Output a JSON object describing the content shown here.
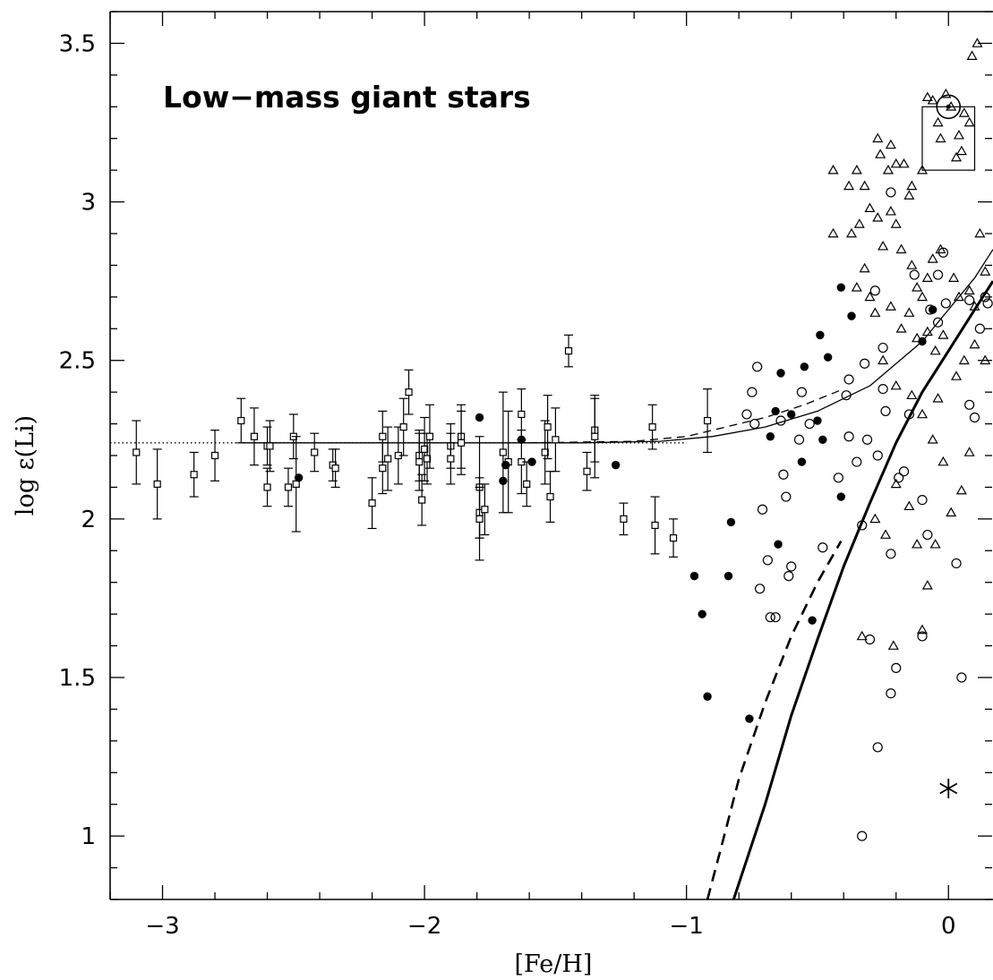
{
  "chart_data": {
    "type": "scatter",
    "title": "Low−mass giant stars",
    "xlabel": "[Fe/H]",
    "ylabel": "log ε(Li)",
    "xlim": [
      -3.2,
      0.17
    ],
    "ylim": [
      0.8,
      3.6
    ],
    "xticks": [
      -3,
      -2,
      -1,
      0
    ],
    "xtick_labels": [
      "−3",
      "−2",
      "−1",
      "0"
    ],
    "yticks": [
      1,
      1.5,
      2,
      2.5,
      3,
      3.5
    ],
    "ytick_labels": [
      "1",
      "1.5",
      "2",
      "2.5",
      "3",
      "3.5"
    ],
    "grid": false,
    "series": [
      {
        "marker": "open-square-with-errorbar",
        "points": [
          [
            -3.1,
            2.21,
            0.1
          ],
          [
            -3.02,
            2.11,
            0.11
          ],
          [
            -2.88,
            2.14,
            0.07
          ],
          [
            -2.8,
            2.2,
            0.08
          ],
          [
            -2.7,
            2.31,
            0.07
          ],
          [
            -2.65,
            2.26,
            0.09
          ],
          [
            -2.6,
            2.23,
            0.06
          ],
          [
            -2.59,
            2.23,
            0.08
          ],
          [
            -2.6,
            2.1,
            0.06
          ],
          [
            -2.52,
            2.1,
            0.06
          ],
          [
            -2.5,
            2.26,
            0.07
          ],
          [
            -2.49,
            2.11,
            0.15
          ],
          [
            -2.42,
            2.21,
            0.06
          ],
          [
            -2.35,
            2.17,
            0.05
          ],
          [
            -2.34,
            2.16,
            0.06
          ],
          [
            -2.2,
            2.05,
            0.08
          ],
          [
            -2.16,
            2.26,
            0.08
          ],
          [
            -2.16,
            2.16,
            0.08
          ],
          [
            -2.14,
            2.19,
            0.1
          ],
          [
            -2.1,
            2.2,
            0.09
          ],
          [
            -2.08,
            2.29,
            0.09
          ],
          [
            -2.06,
            2.4,
            0.07
          ],
          [
            -2.02,
            2.2,
            0.08
          ],
          [
            -2.02,
            2.18,
            0.09
          ],
          [
            -2.01,
            2.06,
            0.08
          ],
          [
            -2.0,
            2.22,
            0.1
          ],
          [
            -1.99,
            2.19,
            0.08
          ],
          [
            -1.98,
            2.26,
            0.1
          ],
          [
            -1.9,
            2.23,
            0.07
          ],
          [
            -1.9,
            2.19,
            0.08
          ],
          [
            -1.86,
            2.26,
            0.1
          ],
          [
            -1.86,
            2.24,
            0.1
          ],
          [
            -1.79,
            2.1,
            0.16
          ],
          [
            -1.79,
            2.02,
            0.08
          ],
          [
            -1.79,
            2.0,
            0.13
          ],
          [
            -1.77,
            2.03,
            0.08
          ],
          [
            -1.7,
            2.21,
            0.19
          ],
          [
            -1.68,
            2.18,
            0.16
          ],
          [
            -1.63,
            2.33,
            0.08
          ],
          [
            -1.63,
            2.18,
            0.1
          ],
          [
            -1.61,
            2.11,
            0.07
          ],
          [
            -1.54,
            2.21,
            0.1
          ],
          [
            -1.53,
            2.29,
            0.1
          ],
          [
            -1.52,
            2.07,
            0.08
          ],
          [
            -1.5,
            2.25,
            0.1
          ],
          [
            -1.45,
            2.53,
            0.05
          ],
          [
            -1.38,
            2.15,
            0.06
          ],
          [
            -1.35,
            2.28,
            0.1
          ],
          [
            -1.35,
            2.26,
            0.13
          ],
          [
            -1.24,
            2.0,
            0.05
          ],
          [
            -1.13,
            2.29,
            0.07
          ],
          [
            -1.12,
            1.98,
            0.09
          ],
          [
            -1.05,
            1.94,
            0.06
          ],
          [
            -0.92,
            2.31,
            0.1
          ]
        ]
      },
      {
        "marker": "filled-circle",
        "points": [
          [
            -2.48,
            2.13
          ],
          [
            -1.79,
            2.32
          ],
          [
            -1.7,
            2.12
          ],
          [
            -1.69,
            2.17
          ],
          [
            -1.63,
            2.25
          ],
          [
            -1.59,
            2.18
          ],
          [
            -1.27,
            2.17
          ],
          [
            -0.97,
            1.82
          ],
          [
            -0.94,
            1.7
          ],
          [
            -0.92,
            1.44
          ],
          [
            -0.84,
            1.82
          ],
          [
            -0.83,
            1.99
          ],
          [
            -0.76,
            1.37
          ],
          [
            -0.65,
            1.92
          ],
          [
            -0.64,
            2.46
          ],
          [
            -0.66,
            2.34
          ],
          [
            -0.68,
            2.26
          ],
          [
            -0.6,
            2.33
          ],
          [
            -0.55,
            2.48
          ],
          [
            -0.56,
            2.18
          ],
          [
            -0.52,
            1.68
          ],
          [
            -0.5,
            2.31
          ],
          [
            -0.49,
            2.58
          ],
          [
            -0.48,
            2.25
          ],
          [
            -0.46,
            2.51
          ],
          [
            -0.41,
            2.73
          ],
          [
            -0.41,
            2.07
          ],
          [
            -0.37,
            2.64
          ],
          [
            -0.1,
            2.56
          ],
          [
            -0.06,
            2.66
          ]
        ]
      },
      {
        "marker": "open-circle",
        "points": [
          [
            -0.77,
            2.33
          ],
          [
            -0.75,
            2.4
          ],
          [
            -0.74,
            2.3
          ],
          [
            -0.73,
            2.48
          ],
          [
            -0.72,
            1.78
          ],
          [
            -0.71,
            2.03
          ],
          [
            -0.69,
            1.87
          ],
          [
            -0.68,
            1.69
          ],
          [
            -0.66,
            1.69
          ],
          [
            -0.63,
            2.14
          ],
          [
            -0.64,
            2.31
          ],
          [
            -0.62,
            2.07
          ],
          [
            -0.61,
            1.82
          ],
          [
            -0.6,
            1.85
          ],
          [
            -0.57,
            2.25
          ],
          [
            -0.56,
            2.4
          ],
          [
            -0.53,
            2.3
          ],
          [
            -0.48,
            1.91
          ],
          [
            -0.42,
            2.13
          ],
          [
            -0.39,
            2.39
          ],
          [
            -0.38,
            2.44
          ],
          [
            -0.38,
            2.26
          ],
          [
            -0.35,
            2.18
          ],
          [
            -0.33,
            1.98
          ],
          [
            -0.32,
            2.49
          ],
          [
            -0.31,
            2.25
          ],
          [
            -0.3,
            1.62
          ],
          [
            -0.28,
            2.72
          ],
          [
            -0.27,
            2.2
          ],
          [
            -0.25,
            2.41
          ],
          [
            -0.25,
            2.54
          ],
          [
            -0.24,
            2.34
          ],
          [
            -0.22,
            1.89
          ],
          [
            -0.22,
            1.45
          ],
          [
            -0.2,
            1.53
          ],
          [
            -0.19,
            2.13
          ],
          [
            -0.17,
            2.15
          ],
          [
            -0.15,
            2.33
          ],
          [
            -0.1,
            2.06
          ],
          [
            -0.08,
            1.95
          ],
          [
            -0.07,
            2.66
          ],
          [
            -0.04,
            2.77
          ],
          [
            -0.04,
            2.62
          ],
          [
            -0.02,
            2.84
          ],
          [
            -0.01,
            2.68
          ],
          [
            0.03,
            1.86
          ],
          [
            0.05,
            1.5
          ],
          [
            0.08,
            2.36
          ],
          [
            0.1,
            2.32
          ],
          [
            0.12,
            2.6
          ],
          [
            0.14,
            2.7
          ],
          [
            0.15,
            2.68
          ],
          [
            -0.33,
            1.0
          ],
          [
            -0.27,
            1.28
          ],
          [
            -0.22,
            3.03
          ],
          [
            -0.13,
            2.77
          ],
          [
            0.08,
            2.69
          ],
          [
            -0.1,
            1.63
          ]
        ]
      },
      {
        "marker": "open-triangle",
        "points": [
          [
            -0.44,
            2.9
          ],
          [
            -0.44,
            3.1
          ],
          [
            -0.38,
            3.05
          ],
          [
            -0.35,
            3.1
          ],
          [
            -0.32,
            3.05
          ],
          [
            -0.27,
            3.2
          ],
          [
            -0.26,
            3.15
          ],
          [
            -0.23,
            3.1
          ],
          [
            -0.22,
            3.18
          ],
          [
            -0.2,
            3.12
          ],
          [
            -0.17,
            3.12
          ],
          [
            -0.14,
            3.05
          ],
          [
            -0.1,
            3.1
          ],
          [
            -0.08,
            3.33
          ],
          [
            -0.06,
            3.32
          ],
          [
            -0.04,
            3.25
          ],
          [
            -0.03,
            3.2
          ],
          [
            -0.01,
            3.34
          ],
          [
            0.01,
            3.3
          ],
          [
            0.04,
            3.21
          ],
          [
            0.05,
            3.16
          ],
          [
            0.06,
            3.28
          ],
          [
            0.08,
            3.25
          ],
          [
            0.09,
            3.46
          ],
          [
            0.11,
            3.5
          ],
          [
            -0.37,
            2.9
          ],
          [
            -0.34,
            2.93
          ],
          [
            -0.3,
            2.98
          ],
          [
            -0.27,
            2.95
          ],
          [
            -0.25,
            2.86
          ],
          [
            -0.22,
            2.97
          ],
          [
            -0.2,
            2.93
          ],
          [
            -0.18,
            2.85
          ],
          [
            -0.14,
            2.8
          ],
          [
            -0.12,
            2.73
          ],
          [
            -0.1,
            2.7
          ],
          [
            -0.08,
            2.76
          ],
          [
            -0.06,
            2.82
          ],
          [
            -0.03,
            2.85
          ],
          [
            0.02,
            2.76
          ],
          [
            0.04,
            2.7
          ],
          [
            0.08,
            2.72
          ],
          [
            0.1,
            2.67
          ],
          [
            0.12,
            2.9
          ],
          [
            0.14,
            2.78
          ],
          [
            -0.35,
            2.73
          ],
          [
            -0.32,
            2.79
          ],
          [
            -0.3,
            2.7
          ],
          [
            -0.28,
            2.65
          ],
          [
            -0.22,
            2.67
          ],
          [
            -0.18,
            2.6
          ],
          [
            -0.15,
            2.65
          ],
          [
            -0.12,
            2.57
          ],
          [
            -0.08,
            2.59
          ],
          [
            -0.05,
            2.53
          ],
          [
            -0.02,
            2.58
          ],
          [
            0.03,
            2.45
          ],
          [
            0.06,
            2.5
          ],
          [
            0.1,
            2.55
          ],
          [
            0.14,
            2.5
          ],
          [
            -0.25,
            2.5
          ],
          [
            -0.2,
            2.42
          ],
          [
            -0.14,
            2.39
          ],
          [
            -0.1,
            2.33
          ],
          [
            -0.06,
            2.25
          ],
          [
            -0.02,
            2.18
          ],
          [
            0.05,
            2.09
          ],
          [
            0.08,
            2.21
          ],
          [
            -0.28,
            2.0
          ],
          [
            -0.24,
            1.95
          ],
          [
            -0.2,
            2.11
          ],
          [
            -0.15,
            2.04
          ],
          [
            -0.12,
            1.92
          ],
          [
            -0.08,
            1.79
          ],
          [
            -0.05,
            1.92
          ],
          [
            0.01,
            2.02
          ],
          [
            -0.33,
            1.63
          ],
          [
            -0.21,
            1.6
          ],
          [
            -0.1,
            1.65
          ],
          [
            -0.15,
            3.02
          ],
          [
            0.03,
            3.14
          ],
          [
            -0.04,
            2.38
          ]
        ]
      }
    ],
    "curves": [
      {
        "style": "dotted",
        "points": [
          [
            -3.2,
            2.24
          ],
          [
            -1.0,
            2.24
          ]
        ]
      },
      {
        "style": "thin-solid",
        "points": [
          [
            -2.7,
            2.24
          ],
          [
            -1.4,
            2.24
          ],
          [
            -1.1,
            2.245
          ],
          [
            -0.9,
            2.26
          ],
          [
            -0.7,
            2.29
          ],
          [
            -0.5,
            2.34
          ],
          [
            -0.3,
            2.42
          ],
          [
            -0.1,
            2.56
          ],
          [
            0.1,
            2.76
          ],
          [
            0.17,
            2.85
          ]
        ]
      },
      {
        "style": "thin-dashed",
        "points": [
          [
            -1.6,
            2.24
          ],
          [
            -1.2,
            2.245
          ],
          [
            -1.0,
            2.26
          ],
          [
            -0.85,
            2.29
          ],
          [
            -0.7,
            2.32
          ],
          [
            -0.55,
            2.36
          ],
          [
            -0.4,
            2.41
          ]
        ]
      },
      {
        "style": "thick-solid",
        "points": [
          [
            -0.82,
            0.8
          ],
          [
            -0.7,
            1.1
          ],
          [
            -0.6,
            1.38
          ],
          [
            -0.5,
            1.62
          ],
          [
            -0.4,
            1.85
          ],
          [
            -0.3,
            2.05
          ],
          [
            -0.2,
            2.24
          ],
          [
            -0.1,
            2.4
          ],
          [
            0.0,
            2.53
          ],
          [
            0.1,
            2.66
          ],
          [
            0.17,
            2.75
          ]
        ]
      },
      {
        "style": "thick-dashed",
        "points": [
          [
            -0.92,
            0.8
          ],
          [
            -0.85,
            1.02
          ],
          [
            -0.8,
            1.18
          ],
          [
            -0.7,
            1.42
          ],
          [
            -0.6,
            1.63
          ],
          [
            -0.5,
            1.8
          ],
          [
            -0.41,
            1.93
          ]
        ]
      }
    ],
    "annotations": [
      {
        "marker": "sun-symbol",
        "x": 0.0,
        "y": 3.3
      },
      {
        "marker": "open-rectangle",
        "x_range": [
          -0.1,
          0.1
        ],
        "y_range": [
          3.1,
          3.3
        ]
      },
      {
        "marker": "asterisk",
        "x": 0.0,
        "y": 1.15
      }
    ]
  }
}
